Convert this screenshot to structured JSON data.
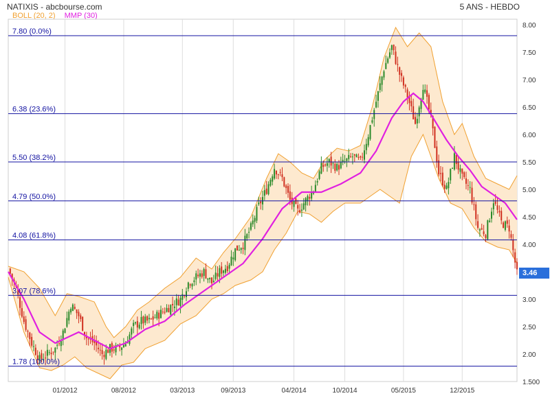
{
  "header": {
    "title": "NATIXIS - abcbourse.com",
    "period": "5 ANS - HEBDO"
  },
  "legend": {
    "boll": {
      "label": "BOLL (20, 2)",
      "color": "#f0a030"
    },
    "mmp": {
      "label": "MMP (30)",
      "color": "#e020e0"
    }
  },
  "last_price": {
    "label": "3.46",
    "color": "#2a6fdb"
  },
  "colors": {
    "up": "#2a8a2a",
    "down": "#d03020",
    "fib": "#1010a0",
    "band_fill": "#fde9cf",
    "grid": "#dddddd"
  },
  "chart_data": {
    "type": "candlestick",
    "title": "NATIXIS - abcbourse.com",
    "ylim": [
      1.5,
      8.1
    ],
    "y_ticks": [
      "1.500",
      "2.00",
      "2.50",
      "3.00",
      "3.50",
      "4.00",
      "4.50",
      "5.00",
      "5.50",
      "6.00",
      "6.50",
      "7.00",
      "7.50",
      "8.00"
    ],
    "x_ticks": [
      {
        "label": "01/2012",
        "week": 29
      },
      {
        "label": "08/2012",
        "week": 59
      },
      {
        "label": "03/2013",
        "week": 89
      },
      {
        "label": "09/2013",
        "week": 115
      },
      {
        "label": "04/2014",
        "week": 146
      },
      {
        "label": "10/2014",
        "week": 172
      },
      {
        "label": "05/2015",
        "week": 202
      },
      {
        "label": "12/2015",
        "week": 232
      }
    ],
    "x_range_weeks": [
      0,
      260
    ],
    "fibonacci": [
      {
        "value": 7.8,
        "label": "7.80  (0.0%)"
      },
      {
        "value": 6.38,
        "label": "6.38  (23.6%)"
      },
      {
        "value": 5.5,
        "label": "5.50  (38.2%)"
      },
      {
        "value": 4.79,
        "label": "4.79  (50.0%)"
      },
      {
        "value": 4.08,
        "label": "4.08  (61.8%)"
      },
      {
        "value": 3.07,
        "label": "3.07  (78.6%)"
      },
      {
        "value": 1.78,
        "label": "1.78  (100.0%)"
      }
    ],
    "close_anchors": [
      [
        0,
        3.55
      ],
      [
        4,
        3.2
      ],
      [
        8,
        2.6
      ],
      [
        12,
        2.2
      ],
      [
        16,
        1.9
      ],
      [
        20,
        2.0
      ],
      [
        24,
        2.1
      ],
      [
        28,
        2.4
      ],
      [
        32,
        2.9
      ],
      [
        36,
        2.7
      ],
      [
        40,
        2.3
      ],
      [
        44,
        2.2
      ],
      [
        48,
        2.0
      ],
      [
        52,
        2.1
      ],
      [
        56,
        2.1
      ],
      [
        60,
        2.2
      ],
      [
        64,
        2.5
      ],
      [
        68,
        2.6
      ],
      [
        72,
        2.6
      ],
      [
        76,
        2.7
      ],
      [
        80,
        2.8
      ],
      [
        84,
        2.9
      ],
      [
        88,
        3.0
      ],
      [
        92,
        3.3
      ],
      [
        96,
        3.4
      ],
      [
        100,
        3.5
      ],
      [
        104,
        3.3
      ],
      [
        108,
        3.5
      ],
      [
        112,
        3.6
      ],
      [
        116,
        3.9
      ],
      [
        120,
        4.0
      ],
      [
        124,
        4.3
      ],
      [
        128,
        4.7
      ],
      [
        132,
        5.0
      ],
      [
        136,
        5.4
      ],
      [
        140,
        5.2
      ],
      [
        144,
        4.8
      ],
      [
        148,
        4.6
      ],
      [
        152,
        4.8
      ],
      [
        156,
        5.0
      ],
      [
        160,
        5.4
      ],
      [
        164,
        5.5
      ],
      [
        168,
        5.4
      ],
      [
        172,
        5.5
      ],
      [
        176,
        5.6
      ],
      [
        180,
        5.5
      ],
      [
        184,
        6.0
      ],
      [
        188,
        6.6
      ],
      [
        192,
        7.2
      ],
      [
        196,
        7.6
      ],
      [
        200,
        7.1
      ],
      [
        204,
        6.7
      ],
      [
        208,
        6.2
      ],
      [
        212,
        6.9
      ],
      [
        216,
        6.3
      ],
      [
        220,
        5.3
      ],
      [
        224,
        5.0
      ],
      [
        228,
        5.6
      ],
      [
        232,
        5.2
      ],
      [
        236,
        5.0
      ],
      [
        240,
        4.3
      ],
      [
        244,
        4.2
      ],
      [
        248,
        4.8
      ],
      [
        252,
        4.4
      ],
      [
        256,
        4.3
      ],
      [
        260,
        3.46
      ]
    ],
    "mmp_30": [
      [
        0,
        3.5
      ],
      [
        8,
        3.0
      ],
      [
        16,
        2.4
      ],
      [
        24,
        2.2
      ],
      [
        30,
        2.3
      ],
      [
        36,
        2.4
      ],
      [
        44,
        2.25
      ],
      [
        52,
        2.1
      ],
      [
        60,
        2.2
      ],
      [
        70,
        2.45
      ],
      [
        80,
        2.6
      ],
      [
        90,
        2.9
      ],
      [
        100,
        3.15
      ],
      [
        110,
        3.4
      ],
      [
        120,
        3.65
      ],
      [
        130,
        4.1
      ],
      [
        140,
        4.65
      ],
      [
        150,
        4.95
      ],
      [
        160,
        4.95
      ],
      [
        170,
        5.1
      ],
      [
        180,
        5.3
      ],
      [
        188,
        5.7
      ],
      [
        196,
        6.3
      ],
      [
        202,
        6.6
      ],
      [
        207,
        6.75
      ],
      [
        212,
        6.6
      ],
      [
        218,
        6.25
      ],
      [
        224,
        5.9
      ],
      [
        230,
        5.6
      ],
      [
        236,
        5.35
      ],
      [
        242,
        5.05
      ],
      [
        248,
        4.9
      ],
      [
        254,
        4.75
      ],
      [
        260,
        4.45
      ]
    ],
    "boll_upper": [
      [
        0,
        3.6
      ],
      [
        8,
        3.5
      ],
      [
        16,
        3.2
      ],
      [
        24,
        2.7
      ],
      [
        30,
        3.1
      ],
      [
        36,
        3.05
      ],
      [
        44,
        2.95
      ],
      [
        50,
        2.5
      ],
      [
        54,
        2.3
      ],
      [
        60,
        2.5
      ],
      [
        66,
        2.8
      ],
      [
        72,
        2.95
      ],
      [
        80,
        3.2
      ],
      [
        88,
        3.4
      ],
      [
        96,
        3.75
      ],
      [
        104,
        3.55
      ],
      [
        110,
        3.85
      ],
      [
        116,
        4.1
      ],
      [
        124,
        4.5
      ],
      [
        132,
        5.2
      ],
      [
        138,
        5.65
      ],
      [
        144,
        5.5
      ],
      [
        150,
        5.3
      ],
      [
        156,
        5.2
      ],
      [
        162,
        5.55
      ],
      [
        168,
        5.75
      ],
      [
        174,
        5.7
      ],
      [
        180,
        5.8
      ],
      [
        186,
        6.5
      ],
      [
        192,
        7.4
      ],
      [
        198,
        7.95
      ],
      [
        204,
        7.6
      ],
      [
        210,
        7.85
      ],
      [
        216,
        7.6
      ],
      [
        222,
        6.6
      ],
      [
        228,
        6.0
      ],
      [
        232,
        6.2
      ],
      [
        238,
        5.6
      ],
      [
        244,
        5.2
      ],
      [
        250,
        5.1
      ],
      [
        256,
        5.0
      ],
      [
        260,
        5.25
      ]
    ],
    "boll_lower": [
      [
        0,
        3.4
      ],
      [
        8,
        2.4
      ],
      [
        16,
        1.75
      ],
      [
        22,
        1.7
      ],
      [
        28,
        1.8
      ],
      [
        34,
        1.95
      ],
      [
        40,
        1.75
      ],
      [
        46,
        1.65
      ],
      [
        52,
        1.55
      ],
      [
        58,
        1.8
      ],
      [
        64,
        1.85
      ],
      [
        70,
        2.1
      ],
      [
        80,
        2.25
      ],
      [
        88,
        2.55
      ],
      [
        96,
        2.7
      ],
      [
        104,
        3.0
      ],
      [
        110,
        3.1
      ],
      [
        116,
        3.25
      ],
      [
        124,
        3.35
      ],
      [
        130,
        3.5
      ],
      [
        136,
        3.9
      ],
      [
        142,
        4.2
      ],
      [
        148,
        4.6
      ],
      [
        154,
        4.55
      ],
      [
        160,
        4.4
      ],
      [
        166,
        4.6
      ],
      [
        172,
        4.75
      ],
      [
        180,
        4.75
      ],
      [
        186,
        4.9
      ],
      [
        190,
        5.0
      ],
      [
        196,
        4.85
      ],
      [
        200,
        4.75
      ],
      [
        206,
        5.6
      ],
      [
        212,
        6.0
      ],
      [
        216,
        5.6
      ],
      [
        220,
        5.2
      ],
      [
        226,
        4.75
      ],
      [
        232,
        4.65
      ],
      [
        238,
        4.3
      ],
      [
        244,
        4.05
      ],
      [
        250,
        3.95
      ],
      [
        256,
        3.9
      ],
      [
        260,
        3.65
      ]
    ]
  }
}
